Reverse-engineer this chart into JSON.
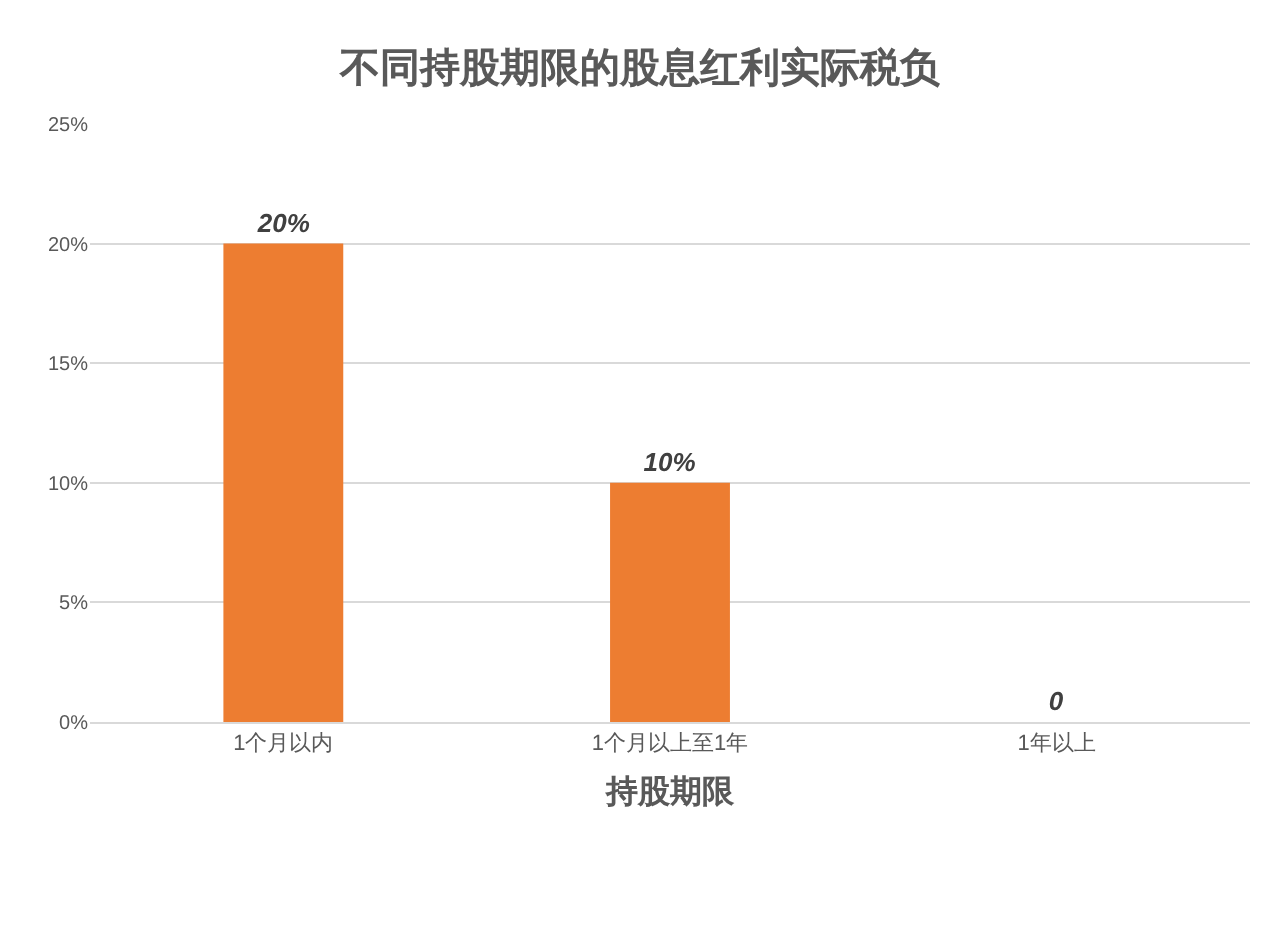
{
  "chart_data": {
    "type": "bar",
    "title": "不同持股期限的股息红利实际税负",
    "xlabel": "持股期限",
    "categories": [
      "1个月以内",
      "1个月以上至1年",
      "1年以上"
    ],
    "values": [
      20,
      10,
      0
    ],
    "value_labels": [
      "20%",
      "10%",
      "0"
    ],
    "color": "#ed7d31",
    "ylim": [
      0,
      25
    ],
    "yticks": [
      {
        "value": 0,
        "label": "0%"
      },
      {
        "value": 5,
        "label": "5%"
      },
      {
        "value": 10,
        "label": "10%"
      },
      {
        "value": 15,
        "label": "15%"
      },
      {
        "value": 20,
        "label": "20%"
      },
      {
        "value": 25,
        "label": "25%"
      }
    ],
    "grid": "y",
    "legend": false
  }
}
